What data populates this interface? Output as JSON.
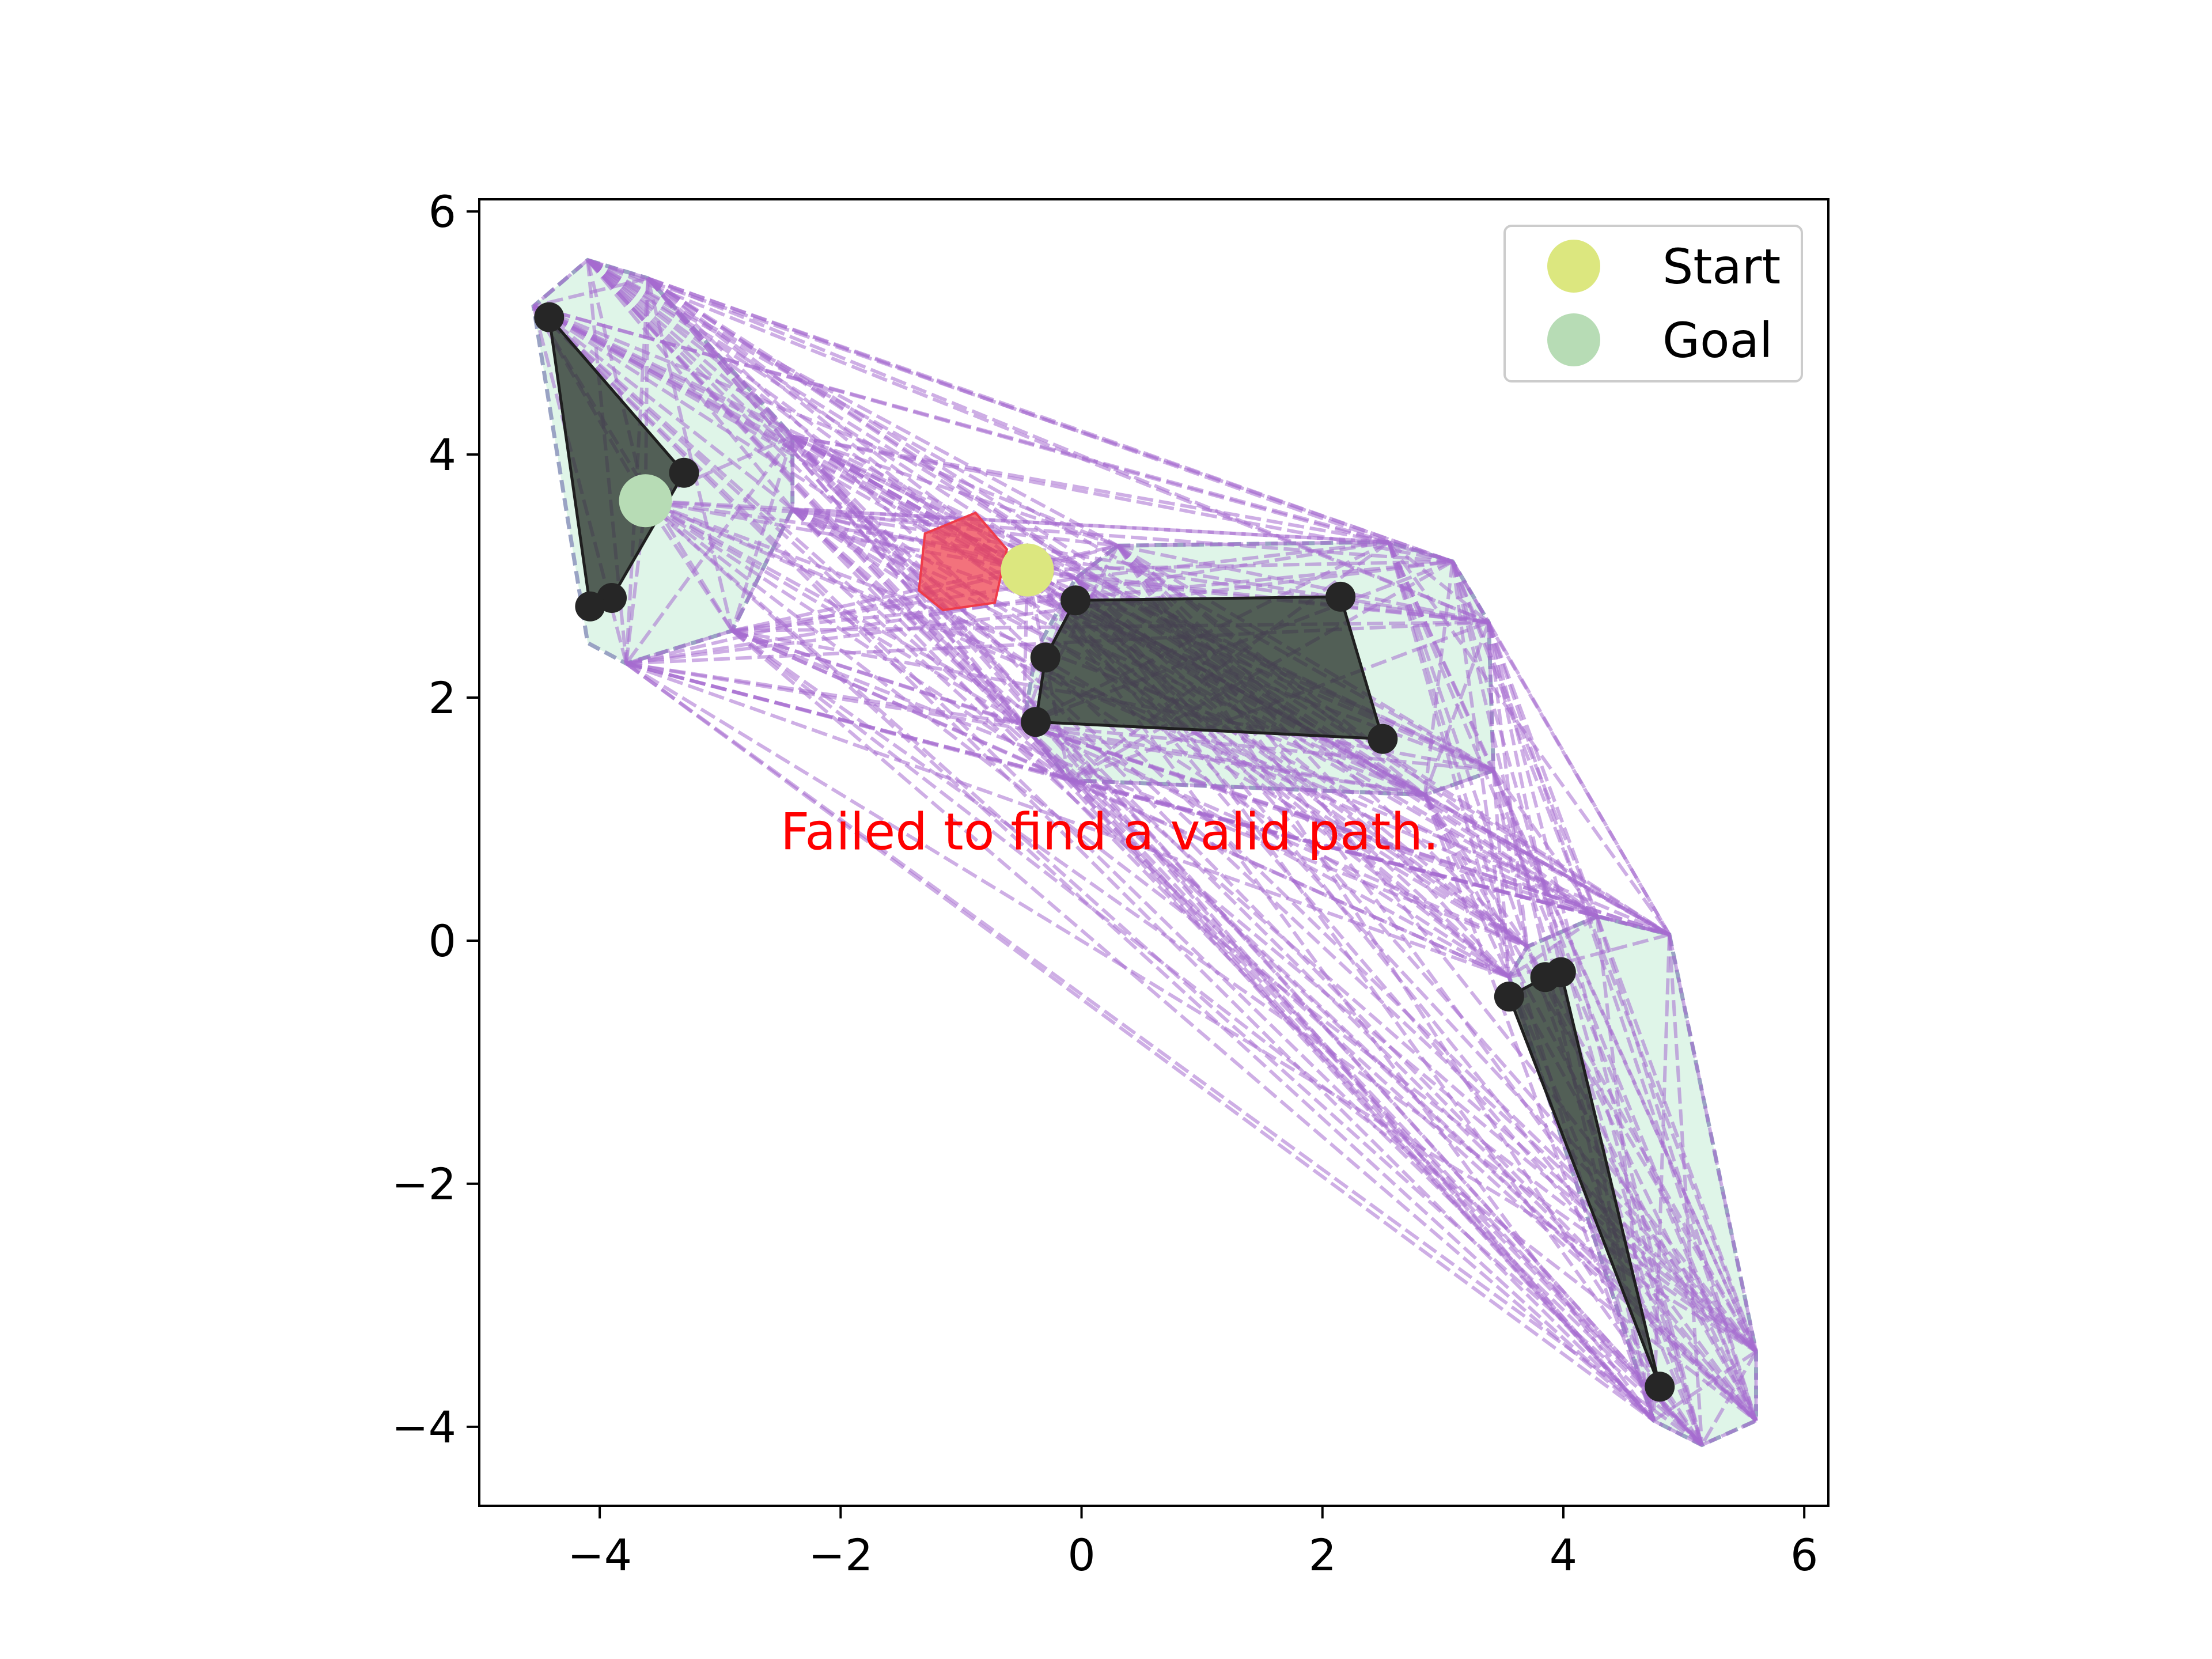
{
  "chart_data": {
    "type": "scatter",
    "title": "",
    "xlabel": "",
    "ylabel": "",
    "xlim": [
      -5.0,
      6.2
    ],
    "ylim": [
      -4.65,
      6.1
    ],
    "xticks": [
      -4,
      -2,
      0,
      2,
      4,
      6
    ],
    "yticks": [
      -4,
      -2,
      0,
      2,
      4,
      6
    ],
    "xtick_labels": [
      "−4",
      "−2",
      "0",
      "2",
      "4",
      "6"
    ],
    "ytick_labels": [
      "−4",
      "−2",
      "0",
      "2",
      "4",
      "6"
    ],
    "grid": false,
    "message": "Failed to find a valid path.",
    "message_position": [
      -2.5,
      0.75
    ],
    "legend": {
      "placement": "top-right",
      "entries": [
        {
          "label": "Start",
          "color": "#dce77f"
        },
        {
          "label": "Goal",
          "color": "#b7dcb5"
        }
      ]
    },
    "start": {
      "x": -0.45,
      "y": 3.05
    },
    "goal": {
      "x": -3.62,
      "y": 3.62
    },
    "obstacles": [
      {
        "name": "obstacle-left",
        "points": [
          [
            -4.42,
            5.13
          ],
          [
            -3.3,
            3.85
          ],
          [
            -3.9,
            2.82
          ],
          [
            -4.08,
            2.75
          ]
        ]
      },
      {
        "name": "obstacle-middle",
        "points": [
          [
            -0.05,
            2.8
          ],
          [
            2.15,
            2.83
          ],
          [
            2.5,
            1.66
          ],
          [
            -0.38,
            1.8
          ],
          [
            -0.3,
            2.33
          ]
        ]
      },
      {
        "name": "obstacle-right",
        "points": [
          [
            3.55,
            -0.46
          ],
          [
            3.85,
            -0.3
          ],
          [
            3.98,
            -0.26
          ],
          [
            4.8,
            -3.67
          ]
        ]
      }
    ],
    "inflated_regions": [
      {
        "name": "region-left",
        "points": [
          [
            -4.1,
            5.6
          ],
          [
            -3.6,
            5.45
          ],
          [
            -2.4,
            4.15
          ],
          [
            -2.4,
            3.55
          ],
          [
            -2.9,
            2.55
          ],
          [
            -3.78,
            2.28
          ],
          [
            -4.1,
            2.45
          ],
          [
            -4.55,
            5.22
          ]
        ]
      },
      {
        "name": "region-middle",
        "points": [
          [
            0.3,
            3.25
          ],
          [
            2.55,
            3.28
          ],
          [
            3.08,
            3.12
          ],
          [
            3.38,
            2.62
          ],
          [
            3.42,
            1.4
          ],
          [
            2.85,
            1.2
          ],
          [
            -0.1,
            1.32
          ],
          [
            -0.48,
            1.78
          ],
          [
            -0.38,
            2.38
          ],
          [
            -0.05,
            2.98
          ]
        ]
      },
      {
        "name": "region-right",
        "points": [
          [
            4.28,
            0.2
          ],
          [
            4.88,
            0.05
          ],
          [
            5.6,
            -3.38
          ],
          [
            5.6,
            -3.95
          ],
          [
            5.15,
            -4.15
          ],
          [
            4.75,
            -3.95
          ],
          [
            3.55,
            -0.3
          ],
          [
            3.7,
            -0.05
          ]
        ]
      }
    ],
    "robot": {
      "name": "robot-pentagon",
      "points": [
        [
          -1.3,
          3.35
        ],
        [
          -0.88,
          3.52
        ],
        [
          -0.62,
          3.22
        ],
        [
          -0.72,
          2.78
        ],
        [
          -1.15,
          2.72
        ],
        [
          -1.35,
          2.88
        ]
      ]
    },
    "graph_nodes": [
      [
        -4.1,
        5.6
      ],
      [
        -3.6,
        5.45
      ],
      [
        -2.4,
        4.15
      ],
      [
        -2.4,
        3.55
      ],
      [
        -2.9,
        2.55
      ],
      [
        -3.78,
        2.28
      ],
      [
        -4.55,
        5.22
      ],
      [
        0.3,
        3.25
      ],
      [
        2.55,
        3.28
      ],
      [
        3.08,
        3.12
      ],
      [
        3.38,
        2.62
      ],
      [
        3.42,
        1.4
      ],
      [
        2.85,
        1.2
      ],
      [
        -0.1,
        1.32
      ],
      [
        -0.48,
        1.78
      ],
      [
        -0.05,
        2.98
      ],
      [
        4.28,
        0.2
      ],
      [
        4.88,
        0.05
      ],
      [
        5.6,
        -3.38
      ],
      [
        5.6,
        -3.95
      ],
      [
        5.15,
        -4.15
      ],
      [
        4.75,
        -3.95
      ],
      [
        3.55,
        -0.3
      ],
      [
        3.7,
        -0.05
      ],
      [
        -0.45,
        3.05
      ],
      [
        -3.62,
        3.62
      ]
    ],
    "colors": {
      "edges": "#a66bcf",
      "region_fill": "#dff5e8",
      "region_border": "#9aa3c4",
      "obstacle_fill": "#2a342d",
      "obstacle_vertex": "#262626",
      "robot": "#ef3b4a",
      "message": "#ff0000"
    }
  }
}
